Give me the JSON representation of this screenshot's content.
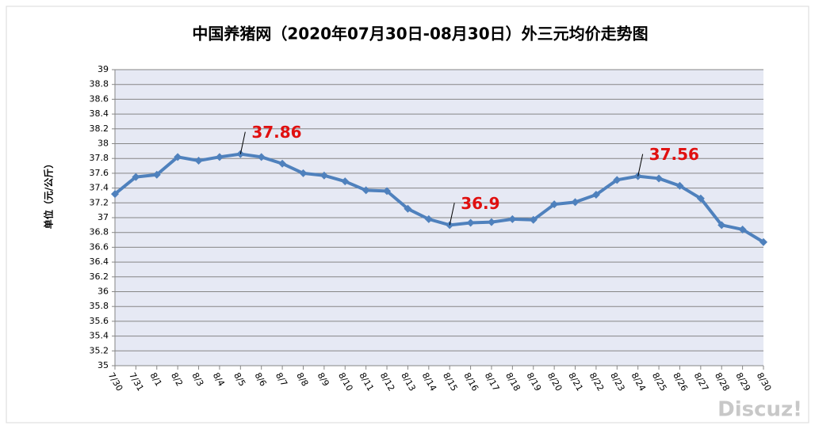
{
  "chart_data": {
    "type": "line",
    "title": "中国养猪网（2020年07月30日-08月30日）外三元均价走势图",
    "y_label": "单位（元/公斤）",
    "categories": [
      "7/30",
      "7/31",
      "8/1",
      "8/2",
      "8/3",
      "8/4",
      "8/5",
      "8/6",
      "8/7",
      "8/8",
      "8/9",
      "8/10",
      "8/11",
      "8/12",
      "8/13",
      "8/14",
      "8/15",
      "8/16",
      "8/17",
      "8/18",
      "8/19",
      "8/20",
      "8/21",
      "8/22",
      "8/23",
      "8/24",
      "8/25",
      "8/26",
      "8/27",
      "8/28",
      "8/29",
      "8/30"
    ],
    "series": [
      {
        "color": "#4f81bd",
        "values": [
          37.32,
          37.55,
          37.58,
          37.82,
          37.77,
          37.82,
          37.86,
          37.82,
          37.73,
          37.6,
          37.57,
          37.49,
          37.37,
          37.36,
          37.12,
          36.98,
          36.9,
          36.93,
          36.94,
          36.98,
          36.97,
          37.18,
          37.21,
          37.31,
          37.51,
          37.56,
          37.53,
          37.43,
          37.26,
          36.9,
          36.84,
          36.67
        ],
        "value_labels": [
          null,
          null,
          null,
          null,
          null,
          null,
          "37.86",
          null,
          null,
          null,
          null,
          null,
          null,
          null,
          null,
          null,
          "36.9",
          null,
          null,
          null,
          null,
          null,
          null,
          null,
          null,
          "37.56",
          null,
          null,
          null,
          null,
          null,
          null
        ]
      }
    ],
    "label_color": "#e01010",
    "ylim": [
      35,
      39
    ],
    "yticks": [
      35,
      35.2,
      35.4,
      35.6,
      35.8,
      36,
      36.2,
      36.4,
      36.6,
      36.8,
      37,
      37.2,
      37.4,
      37.6,
      37.8,
      38,
      38.2,
      38.4,
      38.6,
      38.8,
      39
    ],
    "grid": true
  },
  "watermark": "Discuz!"
}
